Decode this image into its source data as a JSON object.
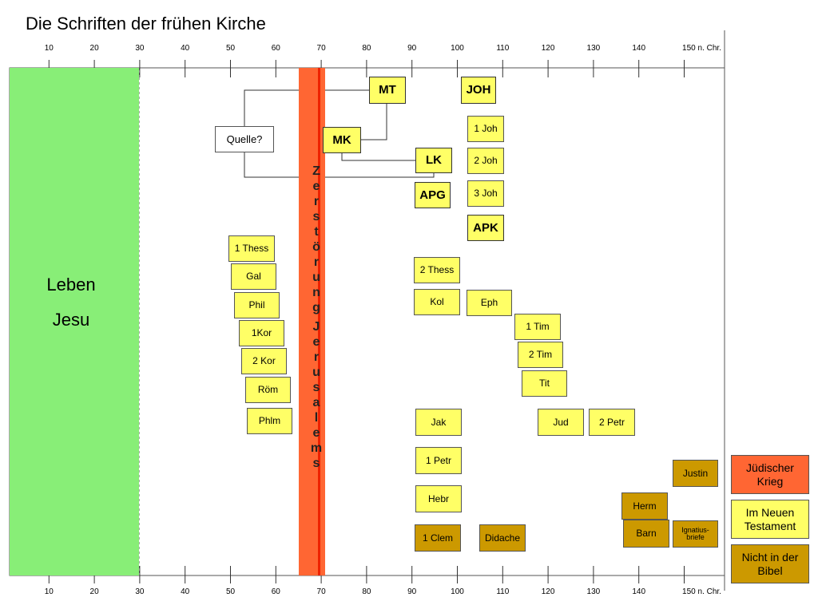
{
  "title": "Die Schriften der frühen Kirche",
  "axis": {
    "ticks": [
      {
        "year": 10,
        "label": "10"
      },
      {
        "year": 20,
        "label": "20"
      },
      {
        "year": 30,
        "label": "30"
      },
      {
        "year": 40,
        "label": "40"
      },
      {
        "year": 50,
        "label": "50"
      },
      {
        "year": 60,
        "label": "60"
      },
      {
        "year": 70,
        "label": "70"
      },
      {
        "year": 80,
        "label": "80"
      },
      {
        "year": 90,
        "label": "90"
      },
      {
        "year": 100,
        "label": "100"
      },
      {
        "year": 110,
        "label": "110"
      },
      {
        "year": 120,
        "label": "120"
      },
      {
        "year": 130,
        "label": "130"
      },
      {
        "year": 140,
        "label": "140"
      },
      {
        "year": 150,
        "label": "150 n. Chr."
      }
    ]
  },
  "life_of_jesus": {
    "line1": "Leben",
    "line2": "Jesu",
    "end_year": 30
  },
  "destruction": {
    "year": 70,
    "word1": "Zerstörung",
    "word2": "Jerusalems"
  },
  "writings": [
    {
      "label": "MT",
      "kind": "gospel"
    },
    {
      "label": "JOH",
      "kind": "gospel"
    },
    {
      "label": "MK",
      "kind": "gospel"
    },
    {
      "label": "LK",
      "kind": "gospel"
    },
    {
      "label": "APG",
      "kind": "gospel"
    },
    {
      "label": "APK",
      "kind": "gospel"
    },
    {
      "label": "Quelle?",
      "kind": "source"
    },
    {
      "label": "1 Joh",
      "kind": "nt"
    },
    {
      "label": "2 Joh",
      "kind": "nt"
    },
    {
      "label": "3 Joh",
      "kind": "nt"
    },
    {
      "label": "1 Thess",
      "kind": "nt"
    },
    {
      "label": "Gal",
      "kind": "nt"
    },
    {
      "label": "Phil",
      "kind": "nt"
    },
    {
      "label": "1Kor",
      "kind": "nt"
    },
    {
      "label": "2 Kor",
      "kind": "nt"
    },
    {
      "label": "Röm",
      "kind": "nt"
    },
    {
      "label": "Phlm",
      "kind": "nt"
    },
    {
      "label": "2 Thess",
      "kind": "nt"
    },
    {
      "label": "Kol",
      "kind": "nt"
    },
    {
      "label": "Eph",
      "kind": "nt"
    },
    {
      "label": "1 Tim",
      "kind": "nt"
    },
    {
      "label": "2 Tim",
      "kind": "nt"
    },
    {
      "label": "Tit",
      "kind": "nt"
    },
    {
      "label": "Jak",
      "kind": "nt"
    },
    {
      "label": "Jud",
      "kind": "nt"
    },
    {
      "label": "2 Petr",
      "kind": "nt"
    },
    {
      "label": "1 Petr",
      "kind": "nt"
    },
    {
      "label": "Hebr",
      "kind": "nt"
    },
    {
      "label": "1 Clem",
      "kind": "extra"
    },
    {
      "label": "Didache",
      "kind": "extra"
    },
    {
      "label": "Justin",
      "kind": "extra"
    },
    {
      "label": "Herm",
      "kind": "extra"
    },
    {
      "label": "Barn",
      "kind": "extra"
    },
    {
      "label": "Ignatius-briefe",
      "kind": "extra"
    }
  ],
  "legend": [
    {
      "label": "Jüdischer Krieg",
      "color": "#ff6633"
    },
    {
      "label": "Im Neuen Testament",
      "color": "#ffff66"
    },
    {
      "label": "Nicht in der Bibel",
      "color": "#cc9900"
    }
  ]
}
